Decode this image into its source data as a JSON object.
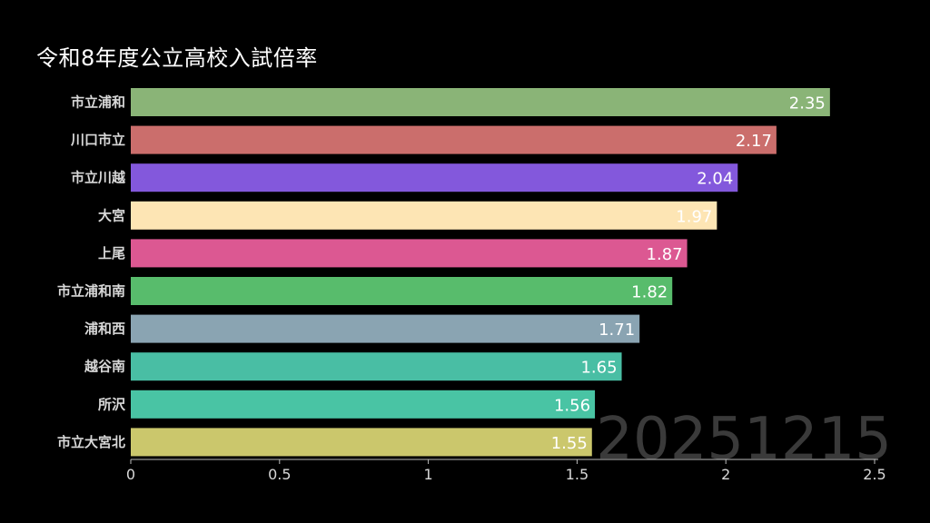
{
  "chart_data": {
    "type": "bar",
    "orientation": "horizontal",
    "title": "令和8年度公立高校入試倍率",
    "categories": [
      "市立浦和",
      "川口市立",
      "市立川越",
      "大宮",
      "上尾",
      "市立浦和南",
      "浦和西",
      "越谷南",
      "所沢",
      "市立大宮北"
    ],
    "values": [
      2.35,
      2.17,
      2.04,
      1.97,
      1.87,
      1.82,
      1.71,
      1.65,
      1.56,
      1.55
    ],
    "value_labels": [
      "2.35",
      "2.17",
      "2.04",
      "1.97",
      "1.87",
      "1.82",
      "1.71",
      "1.65",
      "1.56",
      "1.55"
    ],
    "colors": [
      "#8ab477",
      "#cb6e6c",
      "#8358dc",
      "#fde5b4",
      "#dc5892",
      "#58bc6c",
      "#8aa4b2",
      "#49bea4",
      "#49c4a4",
      "#cbc76c"
    ],
    "xlim": [
      0,
      2.5
    ],
    "xticks": [
      0,
      0.5,
      1,
      1.5,
      2,
      2.5
    ],
    "xtick_labels": [
      "0",
      "0.5",
      "1",
      "1.5",
      "2",
      "2.5"
    ],
    "watermark": "20251215",
    "grid": false,
    "legend": "none"
  }
}
